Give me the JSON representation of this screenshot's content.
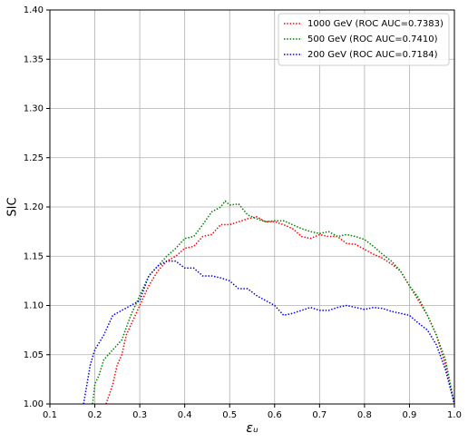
{
  "chart_data": {
    "type": "line",
    "xlabel": "εᵤ",
    "ylabel": "SIC",
    "xlim": [
      0.1,
      1.0
    ],
    "ylim": [
      1.0,
      1.4
    ],
    "xticks": [
      0.1,
      0.2,
      0.3,
      0.4,
      0.5,
      0.6,
      0.7,
      0.8,
      0.9,
      {
        "value": 1.0,
        "label": "1.0"
      }
    ],
    "yticks": [
      {
        "value": 1.0,
        "label": "1.00"
      },
      1.05,
      {
        "value": 1.1,
        "label": "1.10"
      },
      1.15,
      {
        "value": 1.2,
        "label": "1.20"
      },
      1.25,
      {
        "value": 1.3,
        "label": "1.30"
      },
      1.35,
      {
        "value": 1.4,
        "label": "1.40"
      }
    ],
    "grid": true,
    "legend": "upper right",
    "series": [
      {
        "name": "1000 GeV  (ROC AUC=0.7383)",
        "color": "#ff0000",
        "x": [
          0.225,
          0.24,
          0.25,
          0.26,
          0.27,
          0.28,
          0.3,
          0.32,
          0.34,
          0.36,
          0.38,
          0.4,
          0.42,
          0.44,
          0.46,
          0.48,
          0.5,
          0.52,
          0.54,
          0.56,
          0.58,
          0.6,
          0.62,
          0.64,
          0.66,
          0.68,
          0.7,
          0.72,
          0.74,
          0.76,
          0.78,
          0.8,
          0.82,
          0.84,
          0.86,
          0.88,
          0.9,
          0.92,
          0.94,
          0.96,
          0.98,
          1.0
        ],
        "values": [
          1.0,
          1.02,
          1.04,
          1.05,
          1.07,
          1.08,
          1.1,
          1.12,
          1.135,
          1.145,
          1.15,
          1.158,
          1.16,
          1.17,
          1.172,
          1.182,
          1.182,
          1.185,
          1.188,
          1.19,
          1.185,
          1.185,
          1.182,
          1.178,
          1.17,
          1.168,
          1.172,
          1.17,
          1.17,
          1.163,
          1.162,
          1.157,
          1.152,
          1.148,
          1.142,
          1.135,
          1.12,
          1.105,
          1.09,
          1.07,
          1.04,
          1.0
        ]
      },
      {
        "name": "500 GeV  (ROC AUC=0.7410)",
        "color": "#008000",
        "x": [
          0.195,
          0.2,
          0.21,
          0.22,
          0.24,
          0.26,
          0.28,
          0.3,
          0.32,
          0.34,
          0.36,
          0.38,
          0.4,
          0.42,
          0.44,
          0.46,
          0.48,
          0.49,
          0.5,
          0.52,
          0.54,
          0.56,
          0.58,
          0.6,
          0.62,
          0.64,
          0.66,
          0.68,
          0.7,
          0.72,
          0.74,
          0.76,
          0.78,
          0.8,
          0.82,
          0.84,
          0.86,
          0.88,
          0.9,
          0.92,
          0.94,
          0.96,
          0.98,
          1.0
        ],
        "values": [
          1.0,
          1.02,
          1.03,
          1.045,
          1.055,
          1.065,
          1.09,
          1.11,
          1.13,
          1.14,
          1.15,
          1.158,
          1.168,
          1.17,
          1.182,
          1.195,
          1.2,
          1.206,
          1.202,
          1.203,
          1.192,
          1.188,
          1.185,
          1.186,
          1.186,
          1.182,
          1.178,
          1.175,
          1.173,
          1.175,
          1.17,
          1.172,
          1.17,
          1.167,
          1.16,
          1.152,
          1.145,
          1.135,
          1.12,
          1.108,
          1.09,
          1.07,
          1.045,
          1.0
        ]
      },
      {
        "name": "200 GeV (ROC AUC=0.7184)",
        "color": "#0000ff",
        "x": [
          0.175,
          0.19,
          0.2,
          0.22,
          0.24,
          0.26,
          0.28,
          0.3,
          0.32,
          0.34,
          0.36,
          0.38,
          0.4,
          0.42,
          0.44,
          0.46,
          0.48,
          0.5,
          0.52,
          0.54,
          0.56,
          0.58,
          0.6,
          0.62,
          0.64,
          0.66,
          0.68,
          0.7,
          0.72,
          0.74,
          0.76,
          0.78,
          0.8,
          0.82,
          0.84,
          0.86,
          0.88,
          0.9,
          0.92,
          0.94,
          0.96,
          0.98,
          1.0
        ],
        "values": [
          1.0,
          1.04,
          1.055,
          1.07,
          1.09,
          1.095,
          1.1,
          1.105,
          1.13,
          1.14,
          1.145,
          1.145,
          1.138,
          1.138,
          1.13,
          1.13,
          1.128,
          1.125,
          1.117,
          1.117,
          1.11,
          1.105,
          1.1,
          1.09,
          1.092,
          1.095,
          1.098,
          1.095,
          1.095,
          1.098,
          1.1,
          1.098,
          1.096,
          1.098,
          1.097,
          1.094,
          1.092,
          1.09,
          1.082,
          1.075,
          1.06,
          1.035,
          1.0
        ]
      }
    ]
  }
}
